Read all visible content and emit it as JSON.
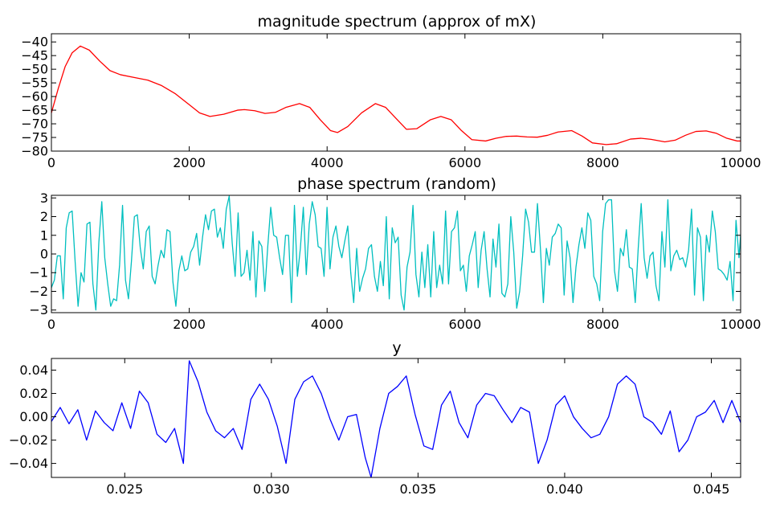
{
  "chart_data": [
    {
      "type": "line",
      "title": "magnitude spectrum (approx of mX)",
      "xlim": [
        0,
        10000
      ],
      "ylim": [
        -80,
        -37
      ],
      "xticks": [
        0,
        2000,
        4000,
        6000,
        8000,
        10000
      ],
      "yticks": [
        -80,
        -75,
        -70,
        -65,
        -60,
        -55,
        -50,
        -45,
        -40
      ],
      "xtick_labels": [
        "0",
        "2000",
        "4000",
        "6000",
        "8000",
        "10000"
      ],
      "ytick_labels": [
        "−80",
        "−75",
        "−70",
        "−65",
        "−60",
        "−55",
        "−50",
        "−45",
        "−40"
      ],
      "series": [
        {
          "color": "#ff0000",
          "x": [
            0,
            100,
            200,
            300,
            420,
            550,
            700,
            850,
            1000,
            1200,
            1400,
            1600,
            1800,
            2000,
            2150,
            2300,
            2500,
            2700,
            2800,
            2950,
            3100,
            3250,
            3400,
            3600,
            3750,
            3900,
            4050,
            4150,
            4300,
            4500,
            4700,
            4850,
            5000,
            5150,
            5300,
            5500,
            5650,
            5800,
            5950,
            6100,
            6300,
            6450,
            6600,
            6750,
            6900,
            7050,
            7200,
            7350,
            7550,
            7700,
            7850,
            8050,
            8200,
            8400,
            8550,
            8700,
            8900,
            9050,
            9200,
            9350,
            9500,
            9650,
            9800,
            9950,
            10000
          ],
          "y": [
            -66,
            -57,
            -49,
            -44,
            -41.5,
            -43,
            -47,
            -50.5,
            -52,
            -53,
            -54,
            -56,
            -59,
            -63,
            -66,
            -67.3,
            -66.5,
            -65,
            -64.8,
            -65.2,
            -66.2,
            -65.8,
            -64,
            -62.6,
            -64,
            -68.5,
            -72.5,
            -73.2,
            -71,
            -66,
            -62.6,
            -64,
            -68,
            -72,
            -71.8,
            -68.5,
            -67.3,
            -68.5,
            -72.5,
            -75.8,
            -76.3,
            -75.3,
            -74.6,
            -74.5,
            -74.8,
            -74.9,
            -74.2,
            -73,
            -72.5,
            -74.5,
            -77,
            -77.6,
            -77.3,
            -75.6,
            -75.3,
            -75.7,
            -76.6,
            -76,
            -74.2,
            -72.8,
            -72.6,
            -73.5,
            -75.3,
            -76.3,
            -76.3
          ]
        }
      ]
    },
    {
      "type": "line",
      "title": "phase spectrum (random)",
      "xlim": [
        0,
        10000
      ],
      "ylim": [
        -3.14,
        3.14
      ],
      "xticks": [
        0,
        2000,
        4000,
        6000,
        8000,
        10000
      ],
      "yticks": [
        -3,
        -2,
        -1,
        0,
        1,
        2,
        3
      ],
      "xtick_labels": [
        "0",
        "2000",
        "4000",
        "6000",
        "8000",
        "10000"
      ],
      "ytick_labels": [
        "−3",
        "−2",
        "−1",
        "0",
        "1",
        "2",
        "3"
      ],
      "series": [
        {
          "color": "#00bfbf",
          "x_start": 0,
          "x_step": 43,
          "values": [
            -1.8,
            -1.4,
            -0.1,
            -0.1,
            -2.4,
            1.4,
            2.2,
            2.3,
            -0.4,
            -2.8,
            -1.0,
            -1.5,
            1.6,
            1.7,
            -1.6,
            -3.0,
            0.6,
            2.8,
            -0.2,
            -1.6,
            -2.8,
            -2.4,
            -2.5,
            -0.6,
            2.6,
            -1.4,
            -2.4,
            -0.4,
            2.0,
            2.1,
            0.3,
            -0.8,
            1.2,
            1.5,
            -1.2,
            -1.6,
            -0.6,
            0.2,
            -0.2,
            1.3,
            1.2,
            -1.5,
            -2.8,
            -0.9,
            -0.1,
            -0.9,
            -0.8,
            0.1,
            0.4,
            1.1,
            -0.6,
            0.9,
            2.1,
            1.3,
            2.3,
            2.4,
            0.9,
            1.4,
            0.3,
            2.4,
            3.1,
            0.6,
            -1.2,
            2.2,
            -1.2,
            -1.0,
            0.2,
            -1.4,
            1.2,
            -2.3,
            0.7,
            0.4,
            -2.0,
            0.4,
            2.5,
            1.0,
            0.9,
            -0.2,
            -1.1,
            1.0,
            1.0,
            -2.6,
            2.6,
            -1.2,
            0.3,
            2.5,
            -1.1,
            1.6,
            2.8,
            2.1,
            0.4,
            0.3,
            -1.2,
            2.5,
            -0.8,
            0.9,
            1.5,
            0.4,
            -0.2,
            0.7,
            1.5,
            -1.0,
            -2.6,
            0.3,
            -2.0,
            -1.3,
            -0.8,
            0.3,
            0.5,
            -1.2,
            -2.0,
            -0.4,
            -1.7,
            2.0,
            -2.4,
            1.4,
            0.6,
            0.9,
            -2.2,
            -3.0,
            -0.7,
            0.1,
            2.6,
            -1.1,
            -2.3,
            0.1,
            -1.8,
            0.5,
            -2.3,
            1.2,
            -1.8,
            -0.6,
            -1.6,
            2.3,
            -1.6,
            1.2,
            1.4,
            2.3,
            -0.9,
            -0.6,
            -2.0,
            -0.1,
            0.5,
            1.2,
            -1.8,
            0.2,
            1.2,
            -0.8,
            -2.3,
            0.8,
            -0.7,
            1.6,
            -2.1,
            -2.3,
            -1.6,
            2.0,
            0.1,
            -2.9,
            -2.0,
            -0.1,
            2.4,
            1.7,
            0.1,
            0.1,
            2.7,
            0.3,
            -2.6,
            0.3,
            -0.6,
            0.9,
            1.1,
            1.6,
            1.4,
            -2.2,
            0.7,
            -0.2,
            -2.6,
            -0.7,
            0.5,
            1.4,
            0.3,
            2.2,
            1.8,
            -1.2,
            -1.6,
            -2.5,
            1.2,
            2.7,
            2.9,
            2.9,
            -0.9,
            -2.0,
            0.3,
            -0.1,
            1.3,
            -0.7,
            -0.8,
            -2.6,
            0.3,
            2.7,
            -0.2,
            -1.3,
            -0.1,
            0.1,
            -1.7,
            -2.5,
            1.2,
            -0.7,
            2.9,
            -0.9,
            -0.1,
            0.2,
            -0.3,
            -0.2,
            -0.7,
            0.2,
            2.4,
            -2.2,
            1.4,
            0.9,
            -2.5,
            1.0,
            0.1,
            2.3,
            1.2,
            -0.8,
            -0.9,
            -1.1,
            -1.4,
            -0.4,
            -2.5,
            1.8,
            -0.2,
            2.0,
            -0.6,
            -0.1,
            -0.8,
            2.4,
            2.9,
            -2.0,
            0.3,
            0.1,
            -1.8,
            0.7,
            0.3,
            2.1,
            2.1,
            -0.3,
            -1.8,
            -0.6,
            1.8,
            0.7
          ]
        }
      ]
    },
    {
      "type": "line",
      "title": "y",
      "xlim": [
        0.0225,
        0.046
      ],
      "ylim": [
        -0.052,
        0.05
      ],
      "xticks": [
        0.025,
        0.03,
        0.035,
        0.04,
        0.045
      ],
      "yticks": [
        -0.04,
        -0.02,
        0.0,
        0.02,
        0.04
      ],
      "xtick_labels": [
        "0.025",
        "0.030",
        "0.035",
        "0.040",
        "0.045"
      ],
      "ytick_labels": [
        "−0.04",
        "−0.02",
        "0.00",
        "0.02",
        "0.04"
      ],
      "series": [
        {
          "color": "#0000ff",
          "x": [
            0.0225,
            0.0228,
            0.0231,
            0.0234,
            0.0237,
            0.024,
            0.0243,
            0.0246,
            0.0249,
            0.0252,
            0.0255,
            0.0258,
            0.0261,
            0.0264,
            0.0267,
            0.027,
            0.0272,
            0.0275,
            0.0278,
            0.0281,
            0.0284,
            0.0287,
            0.029,
            0.0293,
            0.0296,
            0.0299,
            0.0302,
            0.0305,
            0.0308,
            0.0311,
            0.0314,
            0.0317,
            0.032,
            0.0323,
            0.0326,
            0.0329,
            0.0332,
            0.0334,
            0.0337,
            0.034,
            0.0343,
            0.0346,
            0.0349,
            0.0352,
            0.0355,
            0.0358,
            0.0361,
            0.0364,
            0.0367,
            0.037,
            0.0373,
            0.0376,
            0.0379,
            0.0382,
            0.0385,
            0.0388,
            0.0391,
            0.0394,
            0.0397,
            0.04,
            0.0403,
            0.0406,
            0.0409,
            0.0412,
            0.0415,
            0.0418,
            0.0421,
            0.0424,
            0.0427,
            0.043,
            0.0433,
            0.0436,
            0.0439,
            0.0442,
            0.0445,
            0.0448,
            0.0451,
            0.0454,
            0.0457,
            0.046
          ],
          "y": [
            -0.004,
            0.008,
            -0.006,
            0.006,
            -0.02,
            0.005,
            -0.005,
            -0.012,
            0.012,
            -0.01,
            0.022,
            0.012,
            -0.015,
            -0.022,
            -0.01,
            -0.04,
            0.048,
            0.03,
            0.004,
            -0.012,
            -0.018,
            -0.01,
            -0.028,
            0.015,
            0.028,
            0.015,
            -0.008,
            -0.04,
            0.015,
            0.03,
            0.035,
            0.02,
            -0.002,
            -0.02,
            0.0,
            0.002,
            -0.035,
            -0.052,
            -0.01,
            0.02,
            0.026,
            0.035,
            0.002,
            -0.025,
            -0.028,
            0.01,
            0.022,
            -0.005,
            -0.018,
            0.01,
            0.02,
            0.018,
            0.006,
            -0.005,
            0.008,
            0.004,
            -0.04,
            -0.02,
            0.01,
            0.018,
            0.0,
            -0.01,
            -0.018,
            -0.015,
            0.0,
            0.028,
            0.035,
            0.028,
            0.0,
            -0.005,
            -0.015,
            0.005,
            -0.03,
            -0.02,
            0.0,
            0.004,
            0.014,
            -0.005,
            0.014,
            -0.005
          ]
        }
      ]
    }
  ]
}
